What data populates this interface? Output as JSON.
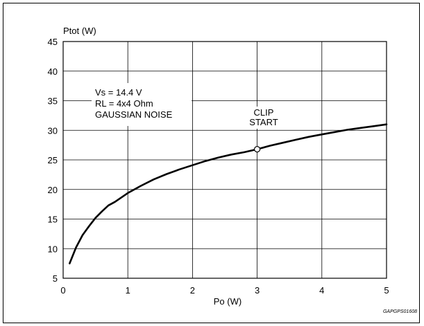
{
  "chart_data": {
    "type": "line",
    "title": "",
    "xlabel": "Po (W)",
    "ylabel": "Ptot (W)",
    "xlim": [
      0,
      5
    ],
    "ylim": [
      5,
      45
    ],
    "x_ticks": [
      0,
      1,
      2,
      3,
      4,
      5
    ],
    "y_ticks": [
      5,
      10,
      15,
      20,
      25,
      30,
      35,
      40,
      45
    ],
    "grid": true,
    "series": [
      {
        "x": [
          0.1,
          0.2,
          0.3,
          0.4,
          0.5,
          0.6,
          0.7,
          0.8,
          1.0,
          1.2,
          1.4,
          1.6,
          1.8,
          2.0,
          2.2,
          2.4,
          2.6,
          2.8,
          3.0,
          3.2,
          3.4,
          3.6,
          3.8,
          4.0,
          4.2,
          4.4,
          4.6,
          4.8,
          5.0
        ],
        "values": [
          7.5,
          10.2,
          12.3,
          13.8,
          15.2,
          16.3,
          17.3,
          17.9,
          19.4,
          20.6,
          21.7,
          22.6,
          23.4,
          24.1,
          24.8,
          25.4,
          25.9,
          26.3,
          26.8,
          27.4,
          27.9,
          28.4,
          28.9,
          29.3,
          29.7,
          30.1,
          30.4,
          30.7,
          31.0
        ]
      }
    ],
    "annotations": {
      "conditions": [
        "Vs = 14.4 V",
        "RL = 4x4 Ohm",
        "GAUSSIAN NOISE"
      ],
      "clip_label": [
        "CLIP",
        "START"
      ],
      "clip_point": {
        "x": 3.0,
        "y": 26.8
      }
    },
    "figure_code": "GAPGPS01608"
  }
}
